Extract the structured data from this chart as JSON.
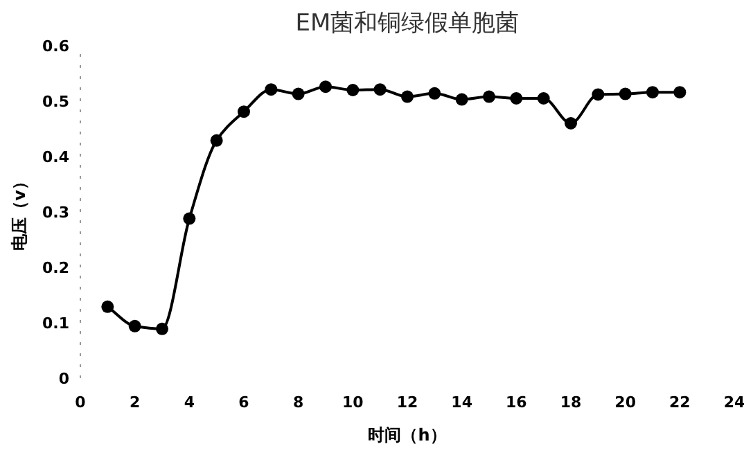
{
  "chart_data": {
    "type": "line",
    "title": "EM菌和铜绿假单胞菌",
    "xlabel": "时间（h）",
    "ylabel": "电压（v）",
    "x": [
      1,
      2,
      3,
      4,
      5,
      6,
      7,
      8,
      9,
      10,
      11,
      12,
      13,
      14,
      15,
      16,
      17,
      18,
      19,
      20,
      21,
      22
    ],
    "series": [
      {
        "color": "#000000",
        "values": [
          0.129,
          0.094,
          0.089,
          0.288,
          0.429,
          0.481,
          0.521,
          0.513,
          0.526,
          0.52,
          0.521,
          0.508,
          0.514,
          0.503,
          0.508,
          0.505,
          0.505,
          0.46,
          0.512,
          0.513,
          0.516,
          0.516
        ]
      }
    ],
    "xlim": [
      0,
      24
    ],
    "xticks": [
      0,
      2,
      4,
      6,
      8,
      10,
      12,
      14,
      16,
      18,
      20,
      22,
      24
    ],
    "ylim": [
      0,
      0.6
    ],
    "yticks": [
      0,
      0.1,
      0.2,
      0.3,
      0.4,
      0.5,
      0.6
    ],
    "marker": "circle",
    "line_style": "solid",
    "grid": false
  }
}
